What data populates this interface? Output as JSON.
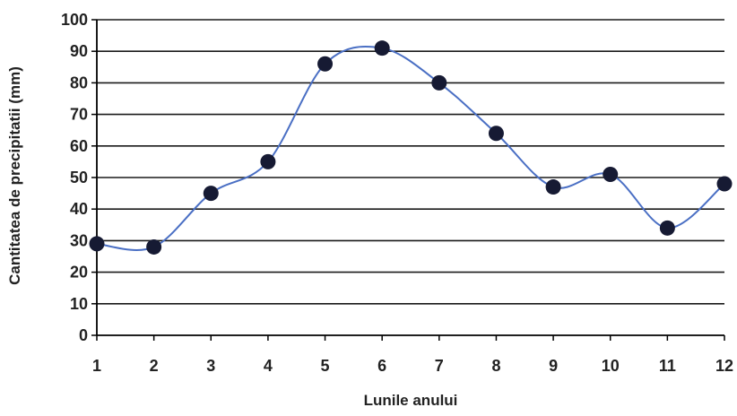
{
  "chart_data": {
    "type": "line",
    "title": "",
    "xlabel": "Lunile anului",
    "ylabel": "Cantitatea de precipitatii (mm)",
    "x": [
      1,
      2,
      3,
      4,
      5,
      6,
      7,
      8,
      9,
      10,
      11,
      12
    ],
    "series": [
      {
        "values": [
          29,
          28,
          45,
          55,
          86,
          91,
          80,
          64,
          47,
          51,
          34,
          48
        ]
      }
    ],
    "xlim": [
      1,
      12
    ],
    "ylim": [
      0,
      100
    ],
    "y_ticks": [
      0,
      10,
      20,
      30,
      40,
      50,
      60,
      70,
      80,
      90,
      100
    ],
    "x_ticks": [
      1,
      2,
      3,
      4,
      5,
      6,
      7,
      8,
      9,
      10,
      11,
      12
    ],
    "grid": "horizontal",
    "smooth": true,
    "colors": {
      "line": "#4a6fc4",
      "marker": "#161a33",
      "grid": "#1a1a1a",
      "axis": "#000000"
    }
  }
}
